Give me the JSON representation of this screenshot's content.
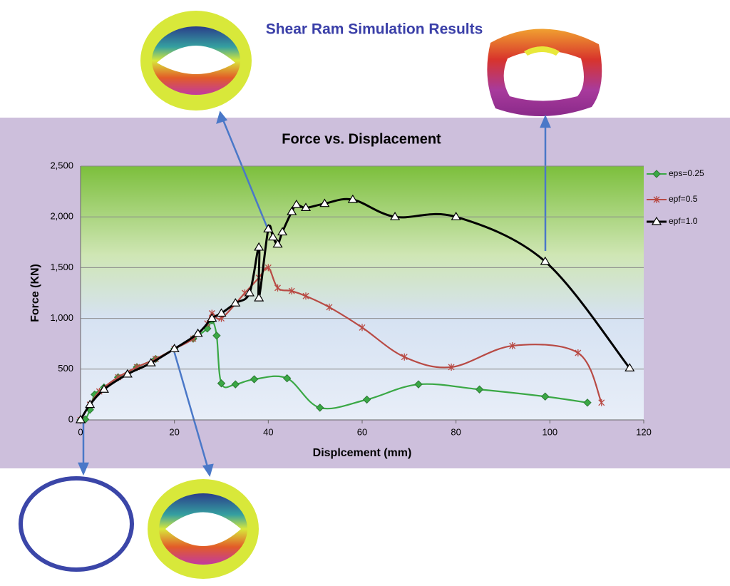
{
  "chart_data": {
    "type": "line",
    "title": "Shear Ram Simulation Results",
    "subtitle": "Force vs. Displacement",
    "x_label": "Displcement (mm)",
    "y_label": "Force (KN)",
    "xlim": [
      0,
      120
    ],
    "xticks": [
      0,
      20,
      40,
      60,
      80,
      100,
      120
    ],
    "ylim": [
      0,
      2500
    ],
    "yticks": [
      0,
      500,
      {
        "value": 1000,
        "label": "1,000"
      },
      {
        "value": 1500,
        "label": "1,500"
      },
      {
        "value": 2000,
        "label": "2,000"
      },
      {
        "value": 2500,
        "label": "2,500"
      }
    ],
    "grid": true,
    "legend": "right",
    "series": [
      {
        "name": "eps=0.25",
        "color": "#3aa845",
        "marker": "diamond",
        "x": [
          0,
          1,
          2,
          3,
          5,
          8,
          12,
          16,
          20,
          24,
          27,
          28,
          29,
          30,
          33,
          37,
          44,
          51,
          61,
          72,
          85,
          99,
          108
        ],
        "values": [
          0,
          5,
          100,
          250,
          320,
          420,
          520,
          600,
          700,
          800,
          900,
          980,
          830,
          360,
          350,
          400,
          410,
          120,
          200,
          350,
          300,
          230,
          170
        ]
      },
      {
        "name": "epf=0.5",
        "color": "#b84a44",
        "marker": "star",
        "x": [
          0,
          2,
          4,
          8,
          12,
          16,
          20,
          24,
          27,
          28,
          30,
          35,
          38,
          40,
          42,
          45,
          48,
          53,
          60,
          69,
          79,
          92,
          106,
          111
        ],
        "values": [
          0,
          150,
          280,
          420,
          520,
          600,
          700,
          800,
          950,
          1050,
          1000,
          1250,
          1400,
          1500,
          1300,
          1270,
          1220,
          1110,
          910,
          620,
          520,
          730,
          660,
          170
        ]
      },
      {
        "name": "epf=1.0",
        "color": "#000000",
        "marker": "triangle",
        "x": [
          0,
          2,
          5,
          10,
          15,
          20,
          25,
          28,
          30,
          33,
          36,
          38,
          38,
          40,
          41,
          42,
          43,
          45,
          46,
          48,
          52,
          58,
          67,
          80,
          99,
          117
        ],
        "values": [
          0,
          150,
          300,
          450,
          560,
          700,
          850,
          1000,
          1050,
          1150,
          1250,
          1700,
          1200,
          1880,
          1800,
          1730,
          1850,
          2050,
          2120,
          2090,
          2130,
          2170,
          2000,
          2000,
          1560,
          510
        ]
      }
    ]
  }
}
